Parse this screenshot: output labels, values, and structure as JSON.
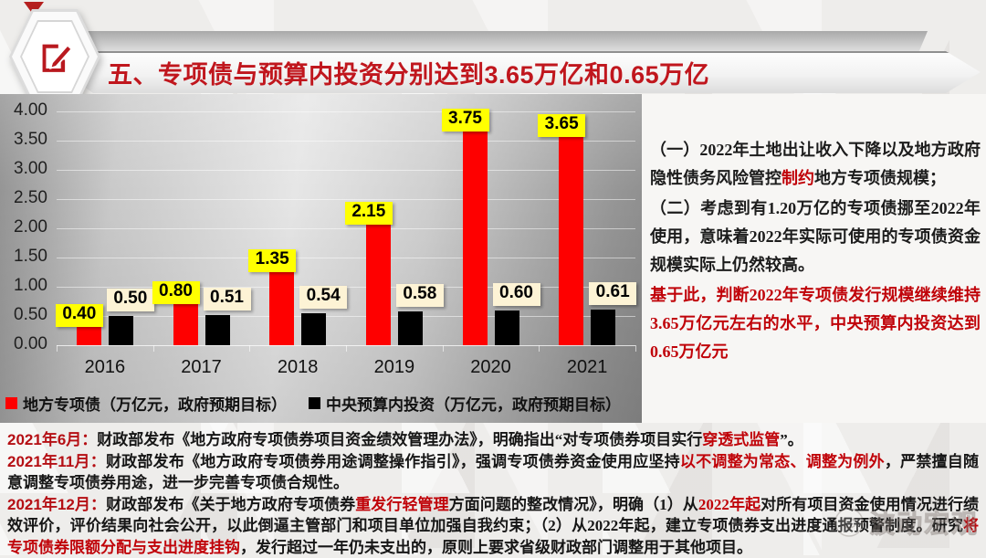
{
  "header": {
    "title": "五、专项债与预算内投资分别达到3.65万亿和0.65万亿",
    "icon": "edit-pencil-icon"
  },
  "chart_data": {
    "type": "bar",
    "categories": [
      "2016",
      "2017",
      "2018",
      "2019",
      "2020",
      "2021"
    ],
    "series": [
      {
        "name": "地方专项债（万亿元，政府预期目标）",
        "color": "#fe0000",
        "label_bg": "#ffff00",
        "values": [
          0.4,
          0.8,
          1.35,
          2.15,
          3.75,
          3.65
        ]
      },
      {
        "name": "中央预算内投资（万亿元，政府预期目标）",
        "color": "#000000",
        "label_bg": "#fdf3d5",
        "values": [
          0.5,
          0.51,
          0.54,
          0.58,
          0.6,
          0.61
        ]
      }
    ],
    "xlabel": "",
    "ylabel": "",
    "ylim": [
      0,
      4.0
    ],
    "ytick_step": 0.5,
    "ytick_labels": [
      "0.00",
      "0.50",
      "1.00",
      "1.50",
      "2.00",
      "2.50",
      "3.00",
      "3.50",
      "4.00"
    ],
    "grid": true,
    "legend_position": "bottom-left",
    "value_labels": "shown"
  },
  "right_panel": {
    "paragraphs": [
      {
        "segments": [
          {
            "text": "（一）2022年土地出让收入下降以及地方政府隐性债务风险管控",
            "cls": ""
          },
          {
            "text": "制约",
            "cls": "red"
          },
          {
            "text": "地方专项债规模；",
            "cls": ""
          }
        ]
      },
      {
        "segments": [
          {
            "text": "（二）考虑到有1.20万亿的专项债挪至2022年使用，意味着2022年实际可使用的专项债资金规模实际上仍然较高。",
            "cls": ""
          }
        ]
      },
      {
        "segments": [
          {
            "text": "基于此，判断2022年专项债发行规模继续维持3.65万亿元左右的水平，中央预算内投资达到0.65万亿元",
            "cls": "red"
          }
        ]
      }
    ]
  },
  "footer": {
    "paragraphs": [
      {
        "segments": [
          {
            "text": "2021年6月：",
            "cls": "date"
          },
          {
            "text": "财政部发布《地方政府专项债券项目资金绩效管理办法》，明确指出“对专项债券项目实行",
            "cls": ""
          },
          {
            "text": "穿透式监管",
            "cls": "red"
          },
          {
            "text": "”。",
            "cls": ""
          }
        ]
      },
      {
        "segments": [
          {
            "text": "2021年11月：",
            "cls": "date"
          },
          {
            "text": "财政部发布《地方政府专项债券用途调整操作指引》，强调专项债券资金使用应坚持",
            "cls": ""
          },
          {
            "text": "以不调整为常态、调整为例外",
            "cls": "red"
          },
          {
            "text": "，严禁擅自随意调整专项债券用途，进一步完善专项债合规性。",
            "cls": ""
          }
        ]
      },
      {
        "segments": [
          {
            "text": "2021年12月：",
            "cls": "date"
          },
          {
            "text": "财政部发布《关于地方政府专项债券",
            "cls": ""
          },
          {
            "text": "重发行轻管理",
            "cls": "red"
          },
          {
            "text": "方面问题的整改情况》，明确（1）从",
            "cls": ""
          },
          {
            "text": "2022年起",
            "cls": "red"
          },
          {
            "text": "对所有项目资金使用情况进行绩效评价，评价结果向社会公开，以此倒逼主管部门和项目单位加强自我约束；（2）从2022年起，建立专项债券支出进度通报预警制度。研究",
            "cls": ""
          },
          {
            "text": "将专项债券限额分配与支出进度挂钩",
            "cls": "red"
          },
          {
            "text": "，发行超过一年仍未支出的，原则上要求省级财政部门调整用于其他项目。",
            "cls": ""
          }
        ]
      }
    ]
  },
  "watermark": {
    "text": "波动宏观",
    "icon": "wechat-smiley-icon"
  },
  "colors": {
    "accent_red": "#c0161d",
    "bar_red": "#fe0000",
    "bar_black": "#000000",
    "label_yellow": "#ffff00",
    "label_cream": "#fdf3d5",
    "chart_bg_gray": "#bdbdbd"
  }
}
